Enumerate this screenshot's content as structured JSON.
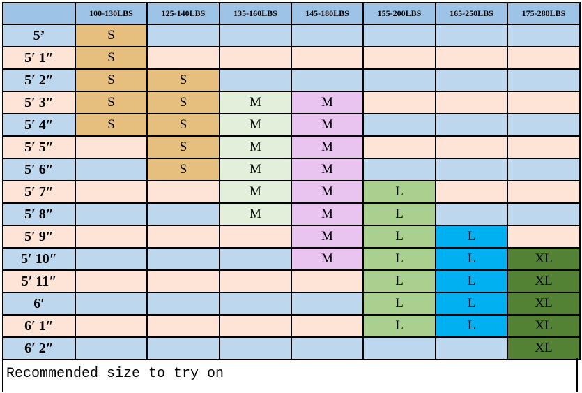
{
  "columns": [
    "",
    "100-130LBS",
    "125-140LBS",
    "135-160LBS",
    "145-180LBS",
    "155-200LBS",
    "165-250LBS",
    "175-280LBS"
  ],
  "rows": [
    {
      "height": "5’",
      "sizes": [
        "S",
        "",
        "",
        "",
        "",
        "",
        ""
      ]
    },
    {
      "height": "5′ 1″",
      "sizes": [
        "S",
        "",
        "",
        "",
        "",
        "",
        ""
      ]
    },
    {
      "height": "5′ 2″",
      "sizes": [
        "S",
        "S",
        "",
        "",
        "",
        "",
        ""
      ]
    },
    {
      "height": "5′ 3″",
      "sizes": [
        "S",
        "S",
        "M",
        "M",
        "",
        "",
        ""
      ]
    },
    {
      "height": "5′ 4″",
      "sizes": [
        "S",
        "S",
        "M",
        "M",
        "",
        "",
        ""
      ]
    },
    {
      "height": "5′ 5″",
      "sizes": [
        "",
        "S",
        "M",
        "M",
        "",
        "",
        ""
      ]
    },
    {
      "height": "5′ 6″",
      "sizes": [
        "",
        "S",
        "M",
        "M",
        "",
        "",
        ""
      ]
    },
    {
      "height": "5′ 7″",
      "sizes": [
        "",
        "",
        "M",
        "M",
        "L",
        "",
        ""
      ]
    },
    {
      "height": "5′ 8″",
      "sizes": [
        "",
        "",
        "M",
        "M",
        "L",
        "",
        ""
      ]
    },
    {
      "height": "5′ 9″",
      "sizes": [
        "",
        "",
        "",
        "M",
        "L",
        "L",
        ""
      ]
    },
    {
      "height": "5′ 10″",
      "sizes": [
        "",
        "",
        "",
        "M",
        "L",
        "L",
        "XL"
      ]
    },
    {
      "height": "5′ 11″",
      "sizes": [
        "",
        "",
        "",
        "",
        "L",
        "L",
        "XL"
      ]
    },
    {
      "height": "6′",
      "sizes": [
        "",
        "",
        "",
        "",
        "L",
        "L",
        "XL"
      ]
    },
    {
      "height": "6′ 1″",
      "sizes": [
        "",
        "",
        "",
        "",
        "L",
        "L",
        "XL"
      ]
    },
    {
      "height": "6′ 2″",
      "sizes": [
        "",
        "",
        "",
        "",
        "",
        "",
        "XL"
      ]
    }
  ],
  "caption": "Recommended size to try on",
  "colors": {
    "header": "#9dc3e6",
    "stripe_blue": "#bdd7ee",
    "stripe_peach": "#fde4d6",
    "column_highlight": [
      "#e6bf7e",
      "#e6bf7e",
      "#e2efda",
      "#e9c4f0",
      "#a9d08e",
      "#00b0f0",
      "#548235"
    ]
  }
}
